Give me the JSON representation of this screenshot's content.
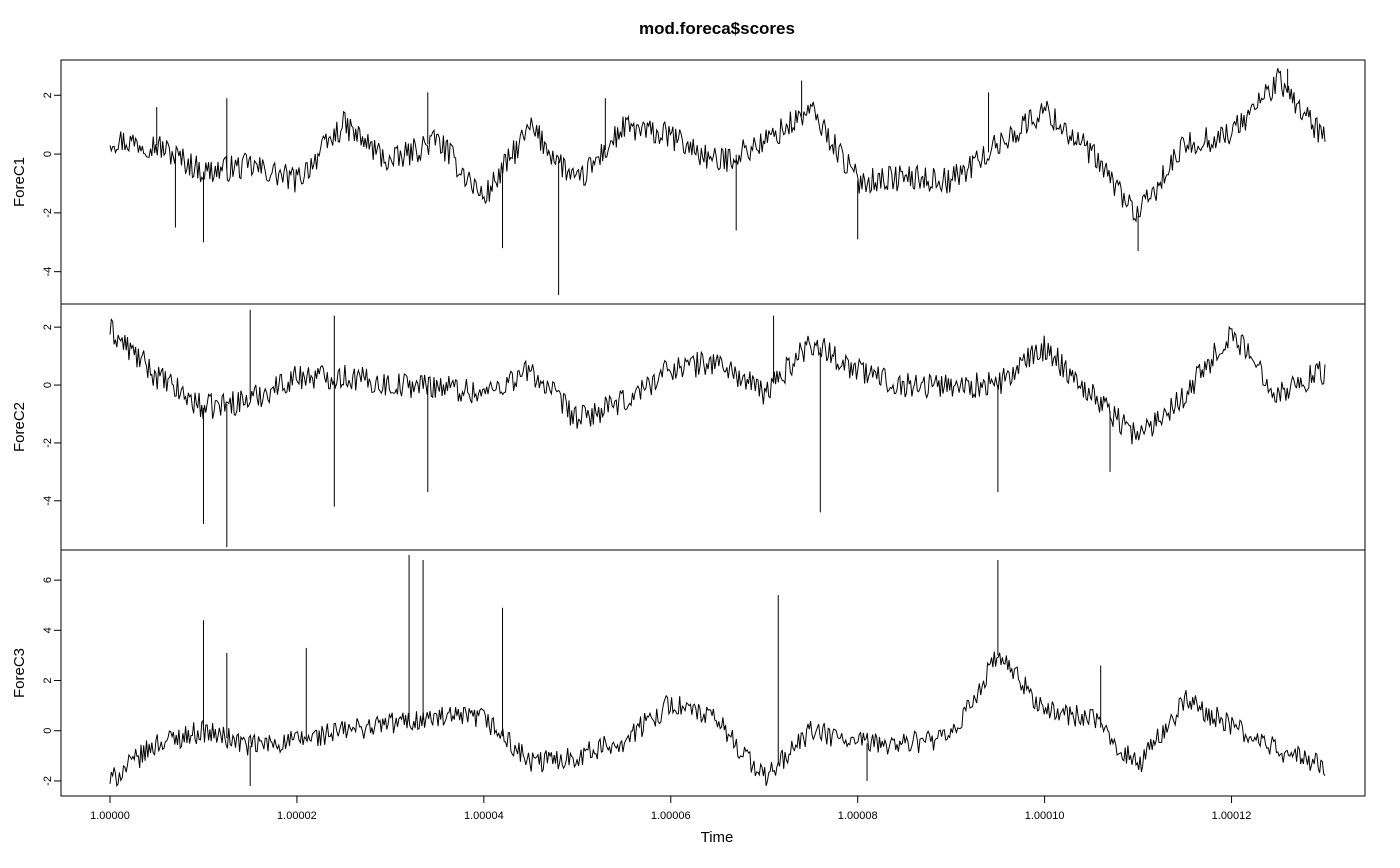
{
  "chart_data": {
    "type": "line",
    "title": "mod.foreca$scores",
    "xlabel": "Time",
    "xlim": [
      1.0,
      1.00013
    ],
    "x_ticks": [
      1.0,
      1.00002,
      1.00004,
      1.00006,
      1.00008,
      1.0001,
      1.00012
    ],
    "x_tick_labels": [
      "1.00000",
      "1.00002",
      "1.00004",
      "1.00006",
      "1.00008",
      "1.00010",
      "1.00012"
    ],
    "grid": false,
    "panels": [
      {
        "ylabel": "ForeC1",
        "ylim": [
          -5.1,
          3.2
        ],
        "y_ticks": [
          -4,
          -2,
          0,
          2
        ],
        "y_tick_labels": [
          "-4",
          "-2",
          "0",
          "2"
        ],
        "series": [
          {
            "x": [
              1.0,
              1.000005,
              1.00001,
              1.000015,
              1.00002,
              1.000025,
              1.00003,
              1.000035,
              1.00004,
              1.000045,
              1.00005,
              1.000055,
              1.00006,
              1.000065,
              1.00007,
              1.000075,
              1.00008,
              1.000085,
              1.00009,
              1.000095,
              1.0001,
              1.000105,
              1.00011,
              1.000115,
              1.00012,
              1.000125,
              1.00013
            ],
            "values": [
              0.5,
              0.3,
              -0.6,
              -0.4,
              -0.9,
              1.0,
              -0.3,
              0.5,
              -1.5,
              0.9,
              -1.0,
              0.9,
              0.6,
              -0.3,
              0.4,
              1.5,
              -0.9,
              -0.8,
              -0.9,
              0.3,
              1.5,
              0.0,
              -2.1,
              0.3,
              0.7,
              2.5,
              0.5
            ],
            "spikes": [
              {
                "x": 1.000005,
                "y": 1.6
              },
              {
                "x": 1.000007,
                "y": -2.5
              },
              {
                "x": 1.00001,
                "y": -3.0
              },
              {
                "x": 1.0000125,
                "y": 1.9
              },
              {
                "x": 1.000034,
                "y": 2.1
              },
              {
                "x": 1.000042,
                "y": -3.2
              },
              {
                "x": 1.000048,
                "y": -4.8
              },
              {
                "x": 1.000053,
                "y": 1.9
              },
              {
                "x": 1.000067,
                "y": -2.6
              },
              {
                "x": 1.000074,
                "y": 2.5
              },
              {
                "x": 1.00008,
                "y": -2.9
              },
              {
                "x": 1.000094,
                "y": 2.1
              },
              {
                "x": 1.00011,
                "y": -3.3
              },
              {
                "x": 1.000126,
                "y": 2.9
              }
            ]
          }
        ]
      },
      {
        "ylabel": "ForeC2",
        "ylim": [
          -5.7,
          2.8
        ],
        "y_ticks": [
          -4,
          -2,
          0,
          2
        ],
        "y_tick_labels": [
          "-4",
          "-2",
          "0",
          "2"
        ],
        "series": [
          {
            "x": [
              1.0,
              1.000005,
              1.00001,
              1.000015,
              1.00002,
              1.000025,
              1.00003,
              1.000035,
              1.00004,
              1.000045,
              1.00005,
              1.000055,
              1.00006,
              1.000065,
              1.00007,
              1.000075,
              1.00008,
              1.000085,
              1.00009,
              1.000095,
              1.0001,
              1.000105,
              1.00011,
              1.000115,
              1.00012,
              1.000125,
              1.00013
            ],
            "values": [
              1.9,
              0.3,
              -0.8,
              -0.5,
              0.3,
              0.3,
              0.0,
              0.0,
              -0.3,
              0.5,
              -1.2,
              -0.6,
              0.6,
              0.8,
              -0.3,
              1.5,
              0.5,
              0.0,
              0.0,
              0.0,
              1.3,
              -0.3,
              -1.8,
              -0.3,
              1.8,
              -0.3,
              0.5
            ],
            "spikes": [
              {
                "x": 1.00001,
                "y": -4.8
              },
              {
                "x": 1.0000125,
                "y": -5.6
              },
              {
                "x": 1.000015,
                "y": 2.6
              },
              {
                "x": 1.000024,
                "y": -4.2
              },
              {
                "x": 1.000024,
                "y": 2.4
              },
              {
                "x": 1.000034,
                "y": -3.7
              },
              {
                "x": 1.000071,
                "y": 2.4
              },
              {
                "x": 1.000076,
                "y": -4.4
              },
              {
                "x": 1.000095,
                "y": -3.7
              },
              {
                "x": 1.000107,
                "y": -3.0
              }
            ]
          }
        ]
      },
      {
        "ylabel": "ForeC3",
        "ylim": [
          -2.6,
          7.2
        ],
        "y_ticks": [
          -2,
          0,
          2,
          4,
          6
        ],
        "y_tick_labels": [
          "-2",
          "0",
          "2",
          "4",
          "6"
        ],
        "series": [
          {
            "x": [
              1.0,
              1.000005,
              1.00001,
              1.000015,
              1.00002,
              1.000025,
              1.00003,
              1.000035,
              1.00004,
              1.000045,
              1.00005,
              1.000055,
              1.00006,
              1.000065,
              1.00007,
              1.000075,
              1.00008,
              1.000085,
              1.00009,
              1.000095,
              1.0001,
              1.000105,
              1.00011,
              1.000115,
              1.00012,
              1.000125,
              1.00013
            ],
            "values": [
              -2.0,
              -0.5,
              0.0,
              -0.6,
              -0.4,
              0.0,
              0.3,
              0.5,
              0.5,
              -1.3,
              -1.0,
              -0.4,
              1.1,
              0.4,
              -1.9,
              0.0,
              -0.5,
              -0.5,
              -0.3,
              3.0,
              0.8,
              0.5,
              -1.4,
              1.2,
              0.2,
              -0.8,
              -1.4
            ],
            "spikes": [
              {
                "x": 1.00001,
                "y": 4.4
              },
              {
                "x": 1.0000125,
                "y": 3.1
              },
              {
                "x": 1.000015,
                "y": -2.2
              },
              {
                "x": 1.000021,
                "y": 3.3
              },
              {
                "x": 1.000032,
                "y": 7.0
              },
              {
                "x": 1.0000335,
                "y": 6.8
              },
              {
                "x": 1.000042,
                "y": 4.9
              },
              {
                "x": 1.0000715,
                "y": 5.4
              },
              {
                "x": 1.000081,
                "y": -2.0
              },
              {
                "x": 1.000095,
                "y": 6.8
              },
              {
                "x": 1.000106,
                "y": 2.6
              }
            ]
          }
        ]
      }
    ]
  }
}
